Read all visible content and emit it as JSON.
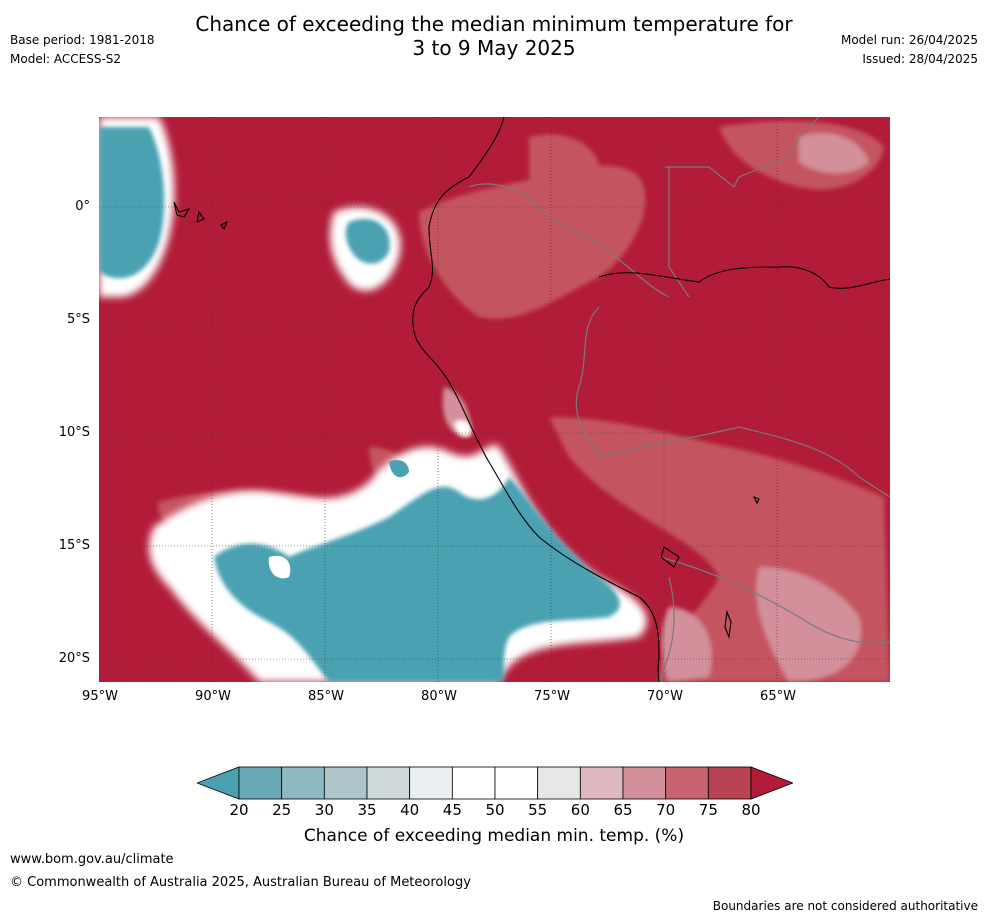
{
  "header": {
    "title_line1": "Chance of exceeding the median minimum temperature for",
    "title_line2": "3 to 9 May 2025",
    "base_period": "Base period: 1981-2018",
    "model": "Model: ACCESS-S2",
    "model_run": "Model run: 26/04/2025",
    "issued": "Issued: 28/04/2025"
  },
  "map": {
    "lat_labels": [
      "0°",
      "5°S",
      "10°S",
      "15°S",
      "20°S"
    ],
    "lon_labels": [
      "95°W",
      "90°W",
      "85°W",
      "80°W",
      "75°W",
      "70°W",
      "65°W"
    ],
    "background_color": "#b21c38",
    "anomaly_color": "#4aa1b2",
    "border_color": "#7a7a7a",
    "coast_color": "#000000"
  },
  "legend": {
    "ticks": [
      "20",
      "25",
      "30",
      "35",
      "40",
      "45",
      "50",
      "55",
      "60",
      "65",
      "70",
      "75",
      "80"
    ],
    "colors": [
      "#4aa1b2",
      "#6aa8b5",
      "#8eb8c3",
      "#adc6cb",
      "#cfd9db",
      "#eaf0f2",
      "#ffffff",
      "#ffffff",
      "#e9e6e7",
      "#deb8be",
      "#d3909a",
      "#c7646f",
      "#b94352",
      "#b21c38"
    ],
    "title": "Chance of exceeding median min. temp. (%)"
  },
  "footer": {
    "website": "www.bom.gov.au/climate",
    "copyright": "© Commonwealth of Australia 2025, Australian Bureau of Meteorology",
    "disclaimer": "Boundaries are not considered authoritative"
  }
}
